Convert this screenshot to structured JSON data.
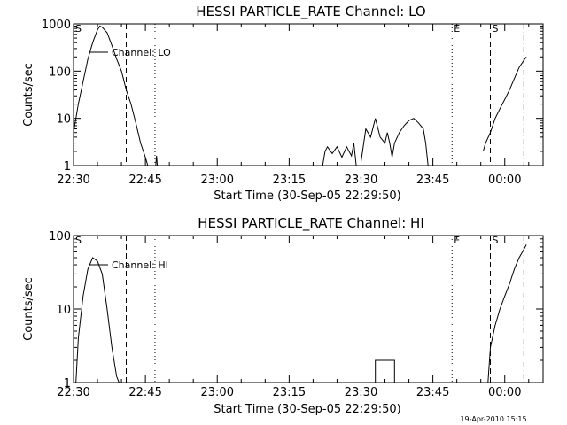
{
  "timestamp": "19-Apr-2010 15:15",
  "chart_data": [
    {
      "type": "line",
      "title": "HESSI PARTICLE_RATE Channel: LO",
      "legend": "Channel: LO",
      "xlabel": "Start Time (30-Sep-05 22:29:50)",
      "ylabel": "Counts/sec",
      "yscale": "log",
      "xlim": [
        "22:30",
        "00:08"
      ],
      "ylim": [
        1,
        1000
      ],
      "x_ticks": [
        "22:30",
        "22:45",
        "23:00",
        "23:15",
        "23:30",
        "23:45",
        "00:00"
      ],
      "y_ticks": [
        "1",
        "10",
        "100",
        "1000"
      ],
      "markers": [
        {
          "label": "S",
          "time": "22:30",
          "style": "solid"
        },
        {
          "label": "",
          "time": "22:41",
          "style": "dashed"
        },
        {
          "label": "",
          "time": "22:47",
          "style": "dotted"
        },
        {
          "label": "E",
          "time": "23:49",
          "style": "dotted"
        },
        {
          "label": "S",
          "time": "23:57",
          "style": "dashed"
        },
        {
          "label": "",
          "time": "00:04",
          "style": "dashdot"
        }
      ],
      "series": [
        {
          "segments": [
            [
              [
                "22:30",
                5
              ],
              [
                "22:31",
                20
              ],
              [
                "22:32",
                60
              ],
              [
                "22:33",
                180
              ],
              [
                "22:34",
                400
              ],
              [
                "22:35",
                750
              ],
              [
                "22:35:30",
                900
              ],
              [
                "22:36",
                850
              ],
              [
                "22:37",
                650
              ],
              [
                "22:38",
                350
              ],
              [
                "22:39",
                180
              ],
              [
                "22:40",
                100
              ],
              [
                "22:41",
                40
              ],
              [
                "22:42",
                20
              ],
              [
                "22:43",
                8
              ],
              [
                "22:44",
                3
              ],
              [
                "22:45",
                1.5
              ],
              [
                "22:45:30",
                1
              ]
            ],
            [
              [
                "22:47:10",
                1
              ],
              [
                "22:47:20",
                1.6
              ],
              [
                "22:47:30",
                1
              ]
            ],
            [
              [
                "23:22",
                1
              ],
              [
                "23:22:30",
                2
              ],
              [
                "23:23",
                2.5
              ],
              [
                "23:24",
                1.8
              ],
              [
                "23:25",
                2.5
              ],
              [
                "23:26",
                1.5
              ],
              [
                "23:27",
                2.5
              ],
              [
                "23:28",
                1.6
              ],
              [
                "23:28:30",
                3
              ],
              [
                "23:29",
                1
              ]
            ],
            [
              [
                "23:30",
                1.2
              ],
              [
                "23:31",
                6
              ],
              [
                "23:32",
                4
              ],
              [
                "23:33",
                10
              ],
              [
                "23:34",
                4
              ],
              [
                "23:35",
                3
              ],
              [
                "23:35:30",
                5
              ],
              [
                "23:36",
                3
              ],
              [
                "23:36:30",
                1.5
              ],
              [
                "23:37",
                3
              ],
              [
                "23:38",
                5
              ],
              [
                "23:39",
                7
              ],
              [
                "23:40",
                9
              ],
              [
                "23:41",
                10
              ],
              [
                "23:42",
                8
              ],
              [
                "23:43",
                6
              ],
              [
                "23:43:30",
                3
              ],
              [
                "23:44",
                1
              ]
            ],
            [
              [
                "23:55:30",
                2
              ],
              [
                "23:56",
                3
              ],
              [
                "23:57",
                5
              ],
              [
                "23:58",
                10
              ],
              [
                "23:59",
                16
              ],
              [
                "00:00",
                25
              ],
              [
                "00:01",
                40
              ],
              [
                "00:02",
                70
              ],
              [
                "00:03",
                120
              ],
              [
                "00:04",
                170
              ],
              [
                "00:04:30",
                200
              ]
            ]
          ]
        }
      ]
    },
    {
      "type": "line",
      "title": "HESSI PARTICLE_RATE Channel: HI",
      "legend": "Channel: HI",
      "xlabel": "Start Time (30-Sep-05 22:29:50)",
      "ylabel": "Counts/sec",
      "yscale": "log",
      "xlim": [
        "22:30",
        "00:08"
      ],
      "ylim": [
        1,
        100
      ],
      "x_ticks": [
        "22:30",
        "22:45",
        "23:00",
        "23:15",
        "23:30",
        "23:45",
        "00:00"
      ],
      "y_ticks": [
        "1",
        "10",
        "100"
      ],
      "markers": [
        {
          "label": "S",
          "time": "22:30",
          "style": "solid"
        },
        {
          "label": "",
          "time": "22:41",
          "style": "dashed"
        },
        {
          "label": "",
          "time": "22:47",
          "style": "dotted"
        },
        {
          "label": "E",
          "time": "23:49",
          "style": "dotted"
        },
        {
          "label": "S",
          "time": "23:57",
          "style": "dashed"
        },
        {
          "label": "",
          "time": "00:04",
          "style": "dashdot"
        }
      ],
      "series": [
        {
          "segments": [
            [
              [
                "22:30:30",
                1
              ],
              [
                "22:31",
                4
              ],
              [
                "22:32",
                15
              ],
              [
                "22:33",
                35
              ],
              [
                "22:34",
                50
              ],
              [
                "22:35",
                45
              ],
              [
                "22:36",
                30
              ],
              [
                "22:37",
                10
              ],
              [
                "22:38",
                3
              ],
              [
                "22:39",
                1.2
              ],
              [
                "22:39:30",
                1
              ]
            ],
            [
              [
                "23:33",
                1
              ],
              [
                "23:33",
                2
              ],
              [
                "23:37",
                2
              ],
              [
                "23:37",
                1
              ]
            ],
            [
              [
                "23:56:30",
                1
              ],
              [
                "23:57",
                3
              ],
              [
                "23:58",
                6
              ],
              [
                "23:59",
                10
              ],
              [
                "00:00",
                15
              ],
              [
                "00:01",
                22
              ],
              [
                "00:02",
                35
              ],
              [
                "00:03",
                50
              ],
              [
                "00:04",
                65
              ],
              [
                "00:04:30",
                75
              ]
            ]
          ]
        }
      ]
    }
  ]
}
